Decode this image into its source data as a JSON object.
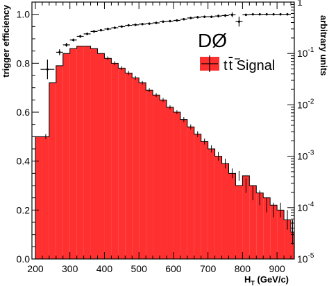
{
  "chart_data": {
    "type": "bar",
    "experiment_label": "DØ",
    "xlabel_main": "H",
    "xlabel_sub": "T",
    "xlabel_unit": " (GeV/c)",
    "ylabel_left": "trigger efficiency",
    "ylabel_right": "arbitrary units",
    "xlim": [
      190,
      950
    ],
    "ylim_left": [
      0,
      1.05
    ],
    "ylim_right_log10": [
      -5,
      0
    ],
    "x_ticks": [
      "200",
      "300",
      "400",
      "500",
      "600",
      "700",
      "800",
      "900"
    ],
    "y_ticks_left": [
      "0.0",
      "0.2",
      "0.4",
      "0.6",
      "0.8",
      "1.0"
    ],
    "y_ticks_right": [
      {
        "base": "10",
        "exp": "-5"
      },
      {
        "base": "10",
        "exp": "-4"
      },
      {
        "base": "10",
        "exp": "-3"
      },
      {
        "base": "10",
        "exp": "-2"
      },
      {
        "base": "10",
        "exp": "-1"
      },
      {
        "base": "1",
        "exp": ""
      }
    ],
    "legend": {
      "base": "t",
      "bar": "t",
      "rest": " Signal"
    },
    "colors": {
      "histogram_fill": "#ff3030",
      "marker": "#000000"
    },
    "signal_histogram": {
      "name": "tt Signal",
      "bin_edges": [
        200,
        220,
        240,
        260,
        280,
        300,
        320,
        340,
        360,
        380,
        400,
        420,
        440,
        460,
        480,
        500,
        520,
        540,
        560,
        580,
        600,
        620,
        640,
        660,
        680,
        700,
        720,
        740,
        760,
        780,
        800,
        820,
        840,
        860,
        880,
        900,
        920,
        940,
        950
      ],
      "values": [
        0.5,
        0.5,
        0.72,
        0.79,
        0.84,
        0.86,
        0.87,
        0.87,
        0.86,
        0.84,
        0.82,
        0.8,
        0.78,
        0.76,
        0.74,
        0.72,
        0.69,
        0.67,
        0.65,
        0.62,
        0.6,
        0.57,
        0.54,
        0.51,
        0.48,
        0.45,
        0.42,
        0.39,
        0.35,
        0.3,
        0.34,
        0.3,
        0.27,
        0.25,
        0.22,
        0.2,
        0.16,
        0.11
      ]
    },
    "trigger_efficiency": {
      "x": [
        235,
        270,
        290,
        310,
        330,
        350,
        370,
        390,
        410,
        430,
        450,
        470,
        490,
        510,
        530,
        550,
        570,
        590,
        610,
        630,
        650,
        670,
        690,
        710,
        730,
        750,
        770,
        790,
        810,
        830,
        850,
        870,
        890,
        910,
        930
      ],
      "y": [
        0.775,
        0.845,
        0.875,
        0.895,
        0.91,
        0.92,
        0.93,
        0.935,
        0.94,
        0.945,
        0.95,
        0.955,
        0.957,
        0.96,
        0.962,
        0.965,
        0.97,
        0.972,
        0.975,
        0.98,
        0.985,
        0.988,
        0.99,
        0.99,
        0.993,
        0.995,
        0.998,
        0.97,
        0.998,
        1.0,
        1.0,
        1.0,
        1.0,
        1.0,
        1.0
      ],
      "x_err": [
        20,
        10,
        10,
        10,
        10,
        10,
        10,
        10,
        10,
        10,
        10,
        10,
        10,
        10,
        10,
        10,
        10,
        10,
        10,
        10,
        10,
        10,
        10,
        10,
        10,
        10,
        10,
        10,
        10,
        10,
        10,
        10,
        10,
        10,
        10
      ],
      "y_err": [
        0.04,
        0.012,
        0.008,
        0.006,
        0.006,
        0.005,
        0.005,
        0.005,
        0.005,
        0.005,
        0.005,
        0.005,
        0.005,
        0.005,
        0.005,
        0.005,
        0.005,
        0.005,
        0.005,
        0.005,
        0.005,
        0.005,
        0.005,
        0.005,
        0.006,
        0.006,
        0.01,
        0.02,
        0.005,
        0.005,
        0.005,
        0.005,
        0.005,
        0.005,
        0.005
      ]
    },
    "signal_errors": {
      "x": [
        230,
        410,
        430,
        450,
        470,
        490,
        510,
        530,
        550,
        570,
        590,
        610,
        630,
        650,
        670,
        690,
        710,
        730,
        750,
        770,
        790,
        810,
        830,
        850,
        870,
        890,
        910,
        930,
        945
      ],
      "y": [
        0.5,
        0.82,
        0.8,
        0.78,
        0.76,
        0.74,
        0.72,
        0.69,
        0.67,
        0.65,
        0.62,
        0.6,
        0.57,
        0.54,
        0.51,
        0.48,
        0.45,
        0.42,
        0.39,
        0.35,
        0.34,
        0.3,
        0.27,
        0.25,
        0.22,
        0.2,
        0.2,
        0.16,
        0.11
      ],
      "y_err": [
        0.01,
        0.008,
        0.008,
        0.008,
        0.008,
        0.008,
        0.008,
        0.008,
        0.008,
        0.008,
        0.008,
        0.008,
        0.01,
        0.01,
        0.012,
        0.012,
        0.015,
        0.018,
        0.02,
        0.02,
        0.02,
        0.03,
        0.03,
        0.03,
        0.03,
        0.03,
        0.03,
        0.04,
        0.05
      ]
    }
  }
}
